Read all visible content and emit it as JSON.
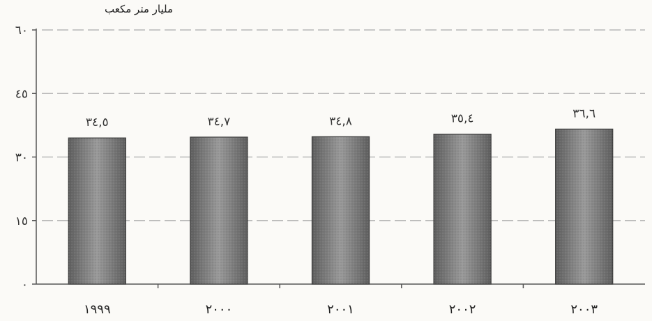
{
  "chart_data": {
    "type": "bar",
    "ylabel": "مليار متر مكعب",
    "categories": [
      "1999",
      "2000",
      "2001",
      "2002",
      "2003"
    ],
    "category_labels": [
      "١٩٩٩",
      "٢٠٠٠",
      "٢٠٠١",
      "٢٠٠٢",
      "٢٠٠٣"
    ],
    "values": [
      34.5,
      34.7,
      34.8,
      35.4,
      36.6
    ],
    "data_labels": [
      "٣٤,٥",
      "٣٤,٧",
      "٣٤,٨",
      "٣٥,٤",
      "٣٦,٦"
    ],
    "ylim": [
      0,
      60
    ],
    "yticks": [
      0,
      15,
      30,
      45,
      60
    ],
    "ytick_labels": [
      "٠",
      "١٥",
      "٣٠",
      "٤٥",
      "٦٠"
    ],
    "grid": true,
    "legend": "none",
    "colors": {
      "bar": "#8a8a8a",
      "grid": "#b8b8b8",
      "axis": "#555555"
    }
  }
}
